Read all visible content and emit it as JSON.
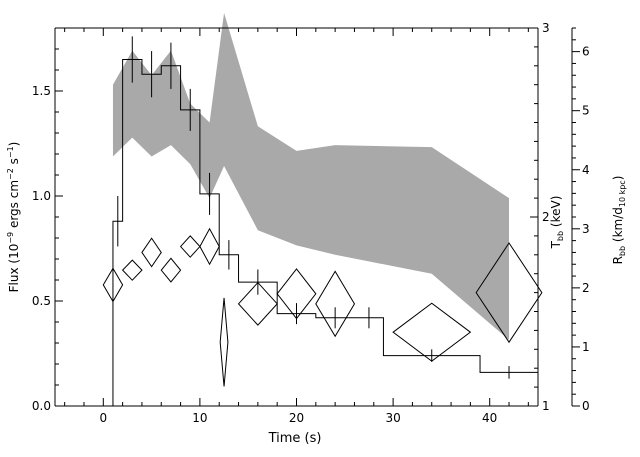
{
  "chart_data": {
    "type": "line",
    "title": "",
    "xlabel": "Time (s)",
    "ylabel_left": [
      "Flux (10",
      "−9",
      " ergs cm",
      "−2",
      " s",
      "−1",
      ")"
    ],
    "ylabel_right1": [
      "T",
      "bb",
      " (keV)"
    ],
    "ylabel_right2": [
      "R",
      "bb",
      " (km/d",
      "10 kpc",
      ")"
    ],
    "xlim": [
      -5,
      45
    ],
    "ylim_left": [
      0,
      1.8
    ],
    "ylim_right1": [
      1,
      3
    ],
    "ylim_right2": [
      0,
      6.4
    ],
    "x_ticks": [
      {
        "v": 0,
        "label": "0"
      },
      {
        "v": 10,
        "label": "10"
      },
      {
        "v": 20,
        "label": "20"
      },
      {
        "v": 30,
        "label": "30"
      },
      {
        "v": 40,
        "label": "40"
      }
    ],
    "y_left_ticks": [
      {
        "v": 0,
        "label": "0.0"
      },
      {
        "v": 0.5,
        "label": "0.5"
      },
      {
        "v": 1.0,
        "label": "1.0"
      },
      {
        "v": 1.5,
        "label": "1.5"
      }
    ],
    "y_right1_ticks": [
      {
        "v": 1,
        "label": "1"
      },
      {
        "v": 2,
        "label": "2"
      },
      {
        "v": 3,
        "label": "3"
      }
    ],
    "y_right2_ticks": [
      {
        "v": 0,
        "label": "0"
      },
      {
        "v": 1,
        "label": "1"
      },
      {
        "v": 2,
        "label": "2"
      },
      {
        "v": 3,
        "label": "3"
      },
      {
        "v": 4,
        "label": "4"
      },
      {
        "v": 5,
        "label": "5"
      },
      {
        "v": 6,
        "label": "6"
      }
    ],
    "flux_histogram": [
      {
        "x0": 1,
        "x1": 2,
        "y": 0.88,
        "err": 0.12
      },
      {
        "x0": 2,
        "x1": 4,
        "y": 1.65,
        "err": 0.11
      },
      {
        "x0": 4,
        "x1": 6,
        "y": 1.58,
        "err": 0.11
      },
      {
        "x0": 6,
        "x1": 8,
        "y": 1.62,
        "err": 0.11
      },
      {
        "x0": 8,
        "x1": 10,
        "y": 1.41,
        "err": 0.1
      },
      {
        "x0": 10,
        "x1": 12,
        "y": 1.01,
        "err": 0.1
      },
      {
        "x0": 12,
        "x1": 14,
        "y": 0.72,
        "err": 0.07
      },
      {
        "x0": 14,
        "x1": 18,
        "y": 0.59,
        "err": 0.06
      },
      {
        "x0": 18,
        "x1": 22,
        "y": 0.44,
        "err": 0.05
      },
      {
        "x0": 22,
        "x1": 26,
        "y": 0.42,
        "err": 0.05
      },
      {
        "x0": 26,
        "x1": 29,
        "y": 0.42,
        "err": 0.05
      },
      {
        "x0": 29,
        "x1": 39,
        "y": 0.24,
        "err": 0.03
      },
      {
        "x0": 39,
        "x1": 45,
        "y": 0.16,
        "err": 0.03
      }
    ],
    "temperature_band": {
      "x": [
        1,
        3,
        5,
        7,
        9,
        11,
        12.5,
        16,
        20,
        24,
        34,
        42
      ],
      "low": [
        2.32,
        2.42,
        2.32,
        2.38,
        2.28,
        2.1,
        2.27,
        1.93,
        1.85,
        1.8,
        1.7,
        1.35
      ],
      "high": [
        2.7,
        2.88,
        2.75,
        2.88,
        2.6,
        2.5,
        3.08,
        2.48,
        2.35,
        2.38,
        2.37,
        2.1
      ]
    },
    "radius_diamonds": [
      {
        "x": 1,
        "y": 2.05,
        "hw": 1.0,
        "hh": 0.28
      },
      {
        "x": 3,
        "y": 2.3,
        "hw": 1.0,
        "hh": 0.17
      },
      {
        "x": 5,
        "y": 2.6,
        "hw": 1.0,
        "hh": 0.24
      },
      {
        "x": 7,
        "y": 2.3,
        "hw": 1.0,
        "hh": 0.2
      },
      {
        "x": 9,
        "y": 2.7,
        "hw": 1.0,
        "hh": 0.18
      },
      {
        "x": 11,
        "y": 2.7,
        "hw": 1.0,
        "hh": 0.3
      },
      {
        "x": 12.5,
        "y": 1.08,
        "hw": 0.4,
        "hh": 0.75
      },
      {
        "x": 16,
        "y": 1.73,
        "hw": 2.0,
        "hh": 0.36
      },
      {
        "x": 20,
        "y": 1.9,
        "hw": 2.0,
        "hh": 0.42
      },
      {
        "x": 24,
        "y": 1.73,
        "hw": 2.0,
        "hh": 0.55
      },
      {
        "x": 34,
        "y": 1.25,
        "hw": 4.0,
        "hh": 0.49
      },
      {
        "x": 42,
        "y": 1.92,
        "hw": 3.4,
        "hh": 0.84
      }
    ]
  }
}
